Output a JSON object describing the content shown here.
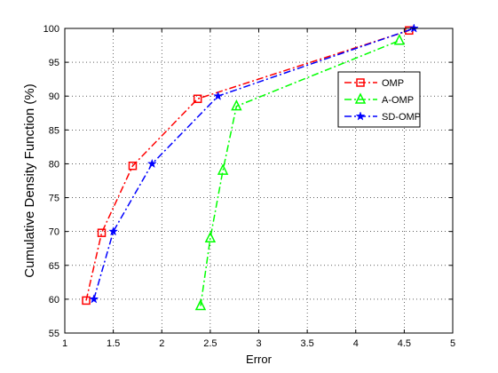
{
  "chart_data": {
    "type": "line",
    "xlabel": "Error",
    "ylabel": "Cumulative Density Function (%)",
    "xlim": [
      1,
      5
    ],
    "ylim": [
      55,
      100
    ],
    "xticks": [
      1,
      1.5,
      2,
      2.5,
      3,
      3.5,
      4,
      4.5,
      5
    ],
    "xtick_labels": [
      "1",
      "1.5",
      "2",
      "2.5",
      "3",
      "3.5",
      "4",
      "4.5",
      "5"
    ],
    "yticks": [
      55,
      60,
      65,
      70,
      75,
      80,
      85,
      90,
      95,
      100
    ],
    "ytick_labels": [
      "55",
      "60",
      "65",
      "70",
      "75",
      "80",
      "85",
      "90",
      "95",
      "100"
    ],
    "grid": true,
    "legend_position": "top-right",
    "series": [
      {
        "name": "OMP",
        "color": "#ff0000",
        "line_style": "dash-dot",
        "marker": "square",
        "x": [
          1.22,
          1.38,
          1.7,
          2.37,
          4.55
        ],
        "y": [
          59.8,
          69.8,
          79.7,
          89.6,
          99.7
        ]
      },
      {
        "name": "A-OMP",
        "color": "#00ff00",
        "line_style": "dash-dot",
        "marker": "triangle",
        "x": [
          2.4,
          2.5,
          2.63,
          2.77,
          4.45
        ],
        "y": [
          59.0,
          69.0,
          79.0,
          88.5,
          98.2
        ]
      },
      {
        "name": "SD-OMP",
        "color": "#0000ff",
        "line_style": "dash-dot",
        "marker": "star",
        "x": [
          1.3,
          1.5,
          1.9,
          2.58,
          4.6
        ],
        "y": [
          60.0,
          70.0,
          80.0,
          90.0,
          100.0
        ]
      }
    ]
  }
}
